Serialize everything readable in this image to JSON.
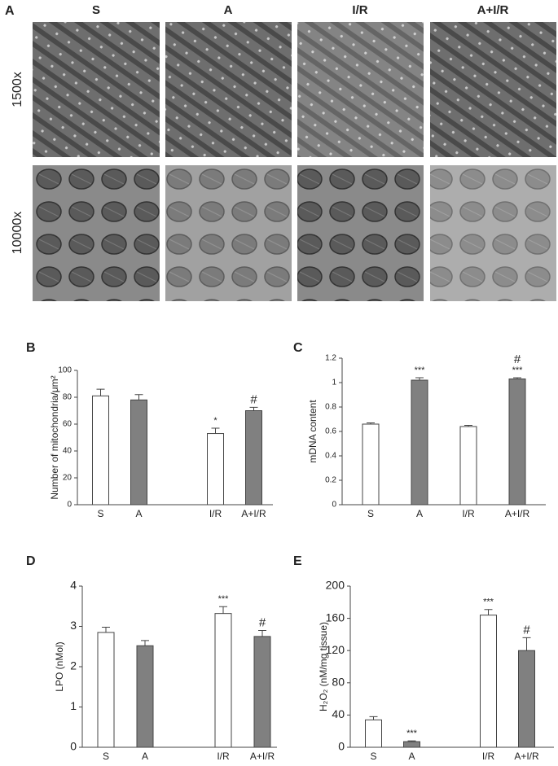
{
  "micrographs": {
    "panel": "A",
    "columns": [
      "S",
      "A",
      "I/R",
      "A+I/R"
    ],
    "rows": [
      "1500x",
      "10000x"
    ]
  },
  "chart_data": [
    {
      "type": "bar",
      "panel": "B",
      "y_label": "Number of  mitochondria/μm²",
      "categories": [
        "S",
        "A",
        "I/R",
        "A+I/R"
      ],
      "values": [
        81,
        78,
        53,
        70
      ],
      "errors": [
        5,
        4,
        4,
        2.5
      ],
      "colors": [
        "#ffffff",
        "#808080",
        "#ffffff",
        "#808080"
      ],
      "annotations": [
        [],
        [],
        [
          "*"
        ],
        [
          "#"
        ]
      ],
      "ylim": [
        0,
        100
      ],
      "yticks": [
        0,
        20,
        40,
        60,
        80,
        100
      ]
    },
    {
      "type": "bar",
      "panel": "C",
      "y_label": "mDNA content",
      "categories": [
        "S",
        "A",
        "I/R",
        "A+I/R"
      ],
      "values": [
        0.66,
        1.02,
        0.64,
        1.03
      ],
      "errors": [
        0.01,
        0.02,
        0.01,
        0.01
      ],
      "colors": [
        "#ffffff",
        "#808080",
        "#ffffff",
        "#808080"
      ],
      "annotations": [
        [],
        [
          "***"
        ],
        [],
        [
          "***",
          "#"
        ]
      ],
      "ylim": [
        0,
        1.2
      ],
      "yticks": [
        0,
        0.2,
        0.4,
        0.6,
        0.8,
        1,
        1.2
      ]
    },
    {
      "type": "bar",
      "panel": "D",
      "y_label": "LPO (nMol)",
      "categories": [
        "S",
        "A",
        "I/R",
        "A+I/R"
      ],
      "values": [
        2.85,
        2.52,
        3.32,
        2.75
      ],
      "errors": [
        0.13,
        0.13,
        0.17,
        0.15
      ],
      "colors": [
        "#ffffff",
        "#808080",
        "#ffffff",
        "#808080"
      ],
      "annotations": [
        [],
        [],
        [
          "***"
        ],
        [
          "#"
        ]
      ],
      "ylim": [
        0,
        4
      ],
      "yticks": [
        0,
        1,
        2,
        3,
        4
      ]
    },
    {
      "type": "bar",
      "panel": "E",
      "y_label": "H₂O₂ (nM/mg tissue)",
      "categories": [
        "S",
        "A",
        "I/R",
        "A+I/R"
      ],
      "values": [
        34,
        7,
        164,
        120
      ],
      "errors": [
        4,
        1,
        7,
        16
      ],
      "colors": [
        "#ffffff",
        "#808080",
        "#ffffff",
        "#808080"
      ],
      "annotations": [
        [],
        [
          "***"
        ],
        [
          "***"
        ],
        [
          "#"
        ]
      ],
      "ylim": [
        0,
        200
      ],
      "yticks": [
        0,
        40,
        80,
        120,
        160,
        200
      ]
    }
  ]
}
